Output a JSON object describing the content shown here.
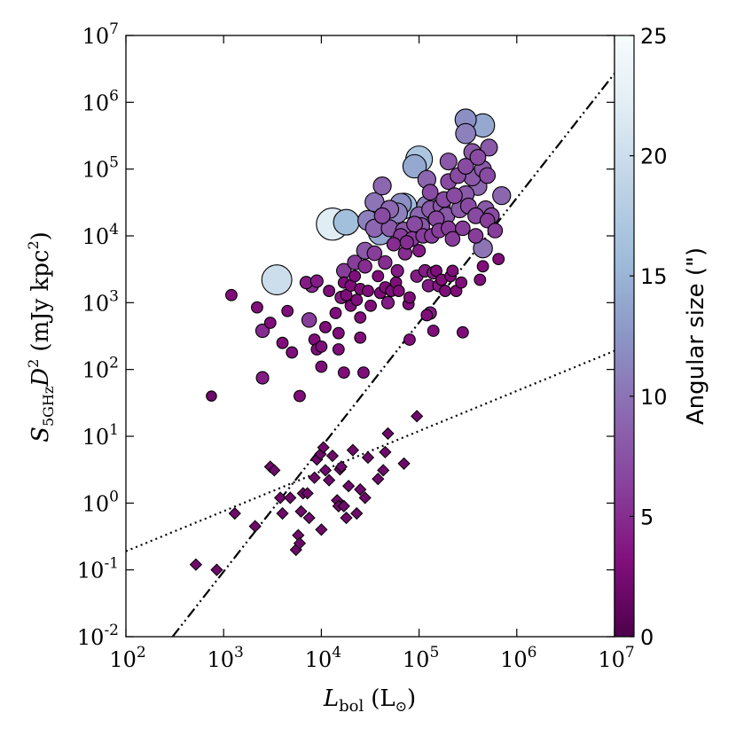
{
  "chart_data": {
    "type": "scatter",
    "xlabel": {
      "main": "L",
      "sub": "bol",
      "unit": "(L",
      "unit_sub": "⊙",
      "unit_close": ")"
    },
    "ylabel": {
      "main": "S",
      "sub": "5GHz",
      "mid": "D",
      "sup": "2",
      "unit": "(mJy kpc",
      "unit_sup": "2",
      "unit_close": ")"
    },
    "x_scale": "log",
    "y_scale": "log",
    "xlim": [
      100,
      10000000
    ],
    "ylim": [
      0.01,
      10000000
    ],
    "x_ticks": [
      {
        "value": 100,
        "base": "10",
        "exp": "2"
      },
      {
        "value": 1000,
        "base": "10",
        "exp": "3"
      },
      {
        "value": 10000,
        "base": "10",
        "exp": "4"
      },
      {
        "value": 100000,
        "base": "10",
        "exp": "5"
      },
      {
        "value": 1000000,
        "base": "10",
        "exp": "6"
      },
      {
        "value": 10000000,
        "base": "10",
        "exp": "7"
      }
    ],
    "y_ticks": [
      {
        "value": 0.01,
        "base": "10",
        "exp": "-2"
      },
      {
        "value": 0.1,
        "base": "10",
        "exp": "-1"
      },
      {
        "value": 1,
        "base": "10",
        "exp": "0"
      },
      {
        "value": 10,
        "base": "10",
        "exp": "1"
      },
      {
        "value": 100,
        "base": "10",
        "exp": "2"
      },
      {
        "value": 1000,
        "base": "10",
        "exp": "3"
      },
      {
        "value": 10000,
        "base": "10",
        "exp": "4"
      },
      {
        "value": 100000,
        "base": "10",
        "exp": "5"
      },
      {
        "value": 1000000,
        "base": "10",
        "exp": "6"
      },
      {
        "value": 10000000,
        "base": "10",
        "exp": "7"
      }
    ],
    "grid": false,
    "colorbar": {
      "label": "Angular size (\")",
      "range": [
        0,
        25
      ],
      "ticks": [
        "0",
        "5",
        "10",
        "15",
        "20",
        "25"
      ],
      "colormap": "BuPu_r",
      "colors": [
        "#4d004b",
        "#810f7c",
        "#88419d",
        "#8c6bb1",
        "#8c96c6",
        "#9ebcda",
        "#bfd3e6",
        "#e0ecf4",
        "#f7fcfd"
      ]
    },
    "lines": [
      {
        "name": "",
        "style": "dash-dot-dot",
        "x": [
          300,
          10000000
        ],
        "y": [
          0.01,
          2700000
        ]
      },
      {
        "name": "",
        "style": "dotted",
        "x": [
          100,
          10000000
        ],
        "y": [
          0.19,
          190
        ]
      }
    ],
    "series": [
      {
        "marker": "circle",
        "points": [
          [
            750,
            40,
            2
          ],
          [
            1200,
            1300,
            3
          ],
          [
            2200,
            850,
            3
          ],
          [
            2500,
            380,
            5
          ],
          [
            2500,
            75,
            4
          ],
          [
            3000,
            500,
            3
          ],
          [
            3500,
            2200,
            20
          ],
          [
            4000,
            250,
            3
          ],
          [
            4500,
            750,
            3
          ],
          [
            5000,
            180,
            3
          ],
          [
            6000,
            40,
            3
          ],
          [
            7000,
            2000,
            4
          ],
          [
            7500,
            550,
            6
          ],
          [
            8000,
            1800,
            5
          ],
          [
            8500,
            280,
            3
          ],
          [
            9000,
            2100,
            4
          ],
          [
            9000,
            200,
            3
          ],
          [
            10000,
            220,
            3
          ],
          [
            10000,
            110,
            3
          ],
          [
            11000,
            430,
            3
          ],
          [
            12000,
            1500,
            3
          ],
          [
            13000,
            15000,
            22
          ],
          [
            14000,
            700,
            3
          ],
          [
            15000,
            350,
            3
          ],
          [
            15000,
            200,
            3
          ],
          [
            16000,
            1200,
            4
          ],
          [
            17000,
            3000,
            6
          ],
          [
            17000,
            2000,
            3
          ],
          [
            17000,
            90,
            3
          ],
          [
            18000,
            16000,
            16
          ],
          [
            18000,
            1300,
            3
          ],
          [
            20000,
            1800,
            3
          ],
          [
            20000,
            900,
            3
          ],
          [
            22000,
            4000,
            6
          ],
          [
            22000,
            2500,
            3
          ],
          [
            23000,
            1100,
            3
          ],
          [
            25000,
            1600,
            3
          ],
          [
            25000,
            600,
            3
          ],
          [
            25000,
            300,
            3
          ],
          [
            27000,
            90,
            3
          ],
          [
            28000,
            6000,
            8
          ],
          [
            28000,
            3500,
            5
          ],
          [
            30000,
            17000,
            11
          ],
          [
            30000,
            1500,
            3
          ],
          [
            32000,
            900,
            3
          ],
          [
            35000,
            13000,
            9
          ],
          [
            35000,
            5500,
            6
          ],
          [
            35000,
            32000,
            10
          ],
          [
            38000,
            2500,
            3
          ],
          [
            40000,
            1400,
            3
          ],
          [
            40000,
            11000,
            14
          ],
          [
            42000,
            56000,
            9
          ],
          [
            42000,
            20000,
            7
          ],
          [
            45000,
            4000,
            5
          ],
          [
            45000,
            1700,
            3
          ],
          [
            48000,
            1000,
            4
          ],
          [
            50000,
            25000,
            9
          ],
          [
            50000,
            13000,
            8
          ],
          [
            52000,
            1500,
            3
          ],
          [
            55000,
            7500,
            5
          ],
          [
            58000,
            2000,
            3
          ],
          [
            60000,
            22000,
            11
          ],
          [
            60000,
            3000,
            4
          ],
          [
            62000,
            1500,
            3
          ],
          [
            65000,
            30000,
            12
          ],
          [
            65000,
            10000,
            6
          ],
          [
            70000,
            28000,
            16
          ],
          [
            70000,
            12000,
            8
          ],
          [
            72000,
            5500,
            5
          ],
          [
            75000,
            8000,
            5
          ],
          [
            78000,
            950,
            3
          ],
          [
            80000,
            1200,
            3
          ],
          [
            80000,
            280,
            3
          ],
          [
            85000,
            9000,
            6
          ],
          [
            90000,
            110000,
            14
          ],
          [
            90000,
            15000,
            7
          ],
          [
            95000,
            2500,
            4
          ],
          [
            100000,
            140000,
            17
          ],
          [
            100000,
            20000,
            9
          ],
          [
            100000,
            6000,
            4
          ],
          [
            105000,
            14000,
            8
          ],
          [
            110000,
            10000,
            6
          ],
          [
            115000,
            3000,
            4
          ],
          [
            120000,
            70000,
            9
          ],
          [
            120000,
            28000,
            11
          ],
          [
            120000,
            650,
            3
          ],
          [
            125000,
            1800,
            4
          ],
          [
            130000,
            45000,
            7
          ],
          [
            130000,
            25000,
            8
          ],
          [
            130000,
            700,
            4
          ],
          [
            135000,
            10000,
            6
          ],
          [
            140000,
            2800,
            4
          ],
          [
            140000,
            380,
            3
          ],
          [
            150000,
            18000,
            7
          ],
          [
            150000,
            3000,
            3
          ],
          [
            160000,
            12000,
            6
          ],
          [
            160000,
            1800,
            4
          ],
          [
            170000,
            28000,
            8
          ],
          [
            170000,
            2200,
            3
          ],
          [
            180000,
            35000,
            7
          ],
          [
            185000,
            1500,
            3
          ],
          [
            190000,
            20000,
            8
          ],
          [
            200000,
            130000,
            8
          ],
          [
            200000,
            65000,
            7
          ],
          [
            200000,
            13000,
            6
          ],
          [
            210000,
            2500,
            3
          ],
          [
            220000,
            9000,
            6
          ],
          [
            220000,
            3000,
            3
          ],
          [
            230000,
            40000,
            7
          ],
          [
            240000,
            1500,
            3
          ],
          [
            250000,
            80000,
            7
          ],
          [
            260000,
            25000,
            8
          ],
          [
            270000,
            2000,
            3
          ],
          [
            280000,
            13000,
            6
          ],
          [
            280000,
            360,
            3
          ],
          [
            300000,
            550000,
            12
          ],
          [
            300000,
            340000,
            11
          ],
          [
            300000,
            110000,
            7
          ],
          [
            300000,
            42000,
            8
          ],
          [
            320000,
            28000,
            7
          ],
          [
            350000,
            180000,
            8
          ],
          [
            350000,
            75000,
            8
          ],
          [
            380000,
            10000,
            6
          ],
          [
            380000,
            20000,
            7
          ],
          [
            400000,
            55000,
            9
          ],
          [
            400000,
            150000,
            7
          ],
          [
            420000,
            2200,
            3
          ],
          [
            450000,
            450000,
            14
          ],
          [
            450000,
            100000,
            8
          ],
          [
            450000,
            6500,
            10
          ],
          [
            450000,
            3500,
            3
          ],
          [
            480000,
            25000,
            8
          ],
          [
            500000,
            80000,
            7
          ],
          [
            500000,
            17000,
            6
          ],
          [
            520000,
            210000,
            8
          ],
          [
            550000,
            20000,
            7
          ],
          [
            600000,
            12000,
            6
          ],
          [
            650000,
            4500,
            3
          ],
          [
            700000,
            40000,
            9
          ]
        ]
      },
      {
        "marker": "diamond",
        "points": [
          [
            520,
            0.12,
            2
          ],
          [
            850,
            0.1,
            2
          ],
          [
            1300,
            0.7,
            2
          ],
          [
            2100,
            0.45,
            2
          ],
          [
            3000,
            3.5,
            2
          ],
          [
            3300,
            3.1,
            2
          ],
          [
            3800,
            1.2,
            2
          ],
          [
            4000,
            0.7,
            2
          ],
          [
            4800,
            1.2,
            2
          ],
          [
            5500,
            0.2,
            2
          ],
          [
            5800,
            0.33,
            2
          ],
          [
            6000,
            0.25,
            2
          ],
          [
            6200,
            0.75,
            2
          ],
          [
            6500,
            1.4,
            2
          ],
          [
            7200,
            1.4,
            2
          ],
          [
            7500,
            0.6,
            2
          ],
          [
            8500,
            2.4,
            2
          ],
          [
            9000,
            4.5,
            2
          ],
          [
            9800,
            5.4,
            2
          ],
          [
            10000,
            0.4,
            2
          ],
          [
            10500,
            6.8,
            2
          ],
          [
            11000,
            3.1,
            2
          ],
          [
            12000,
            2.2,
            2
          ],
          [
            13000,
            5.1,
            2
          ],
          [
            14500,
            1.1,
            2
          ],
          [
            15000,
            0.9,
            2
          ],
          [
            15500,
            3.2,
            2
          ],
          [
            16000,
            3.5,
            2
          ],
          [
            17000,
            0.9,
            2
          ],
          [
            18000,
            0.6,
            2
          ],
          [
            19000,
            1.8,
            2
          ],
          [
            21000,
            6.2,
            2
          ],
          [
            23000,
            0.7,
            2
          ],
          [
            25000,
            1.6,
            2
          ],
          [
            28000,
            1.2,
            2
          ],
          [
            30000,
            4.8,
            2
          ],
          [
            38000,
            2.3,
            2
          ],
          [
            43000,
            3.1,
            2
          ],
          [
            45000,
            5.8,
            2
          ],
          [
            48000,
            11,
            2
          ],
          [
            70000,
            3.9,
            2
          ],
          [
            95000,
            20,
            2
          ]
        ]
      }
    ]
  }
}
